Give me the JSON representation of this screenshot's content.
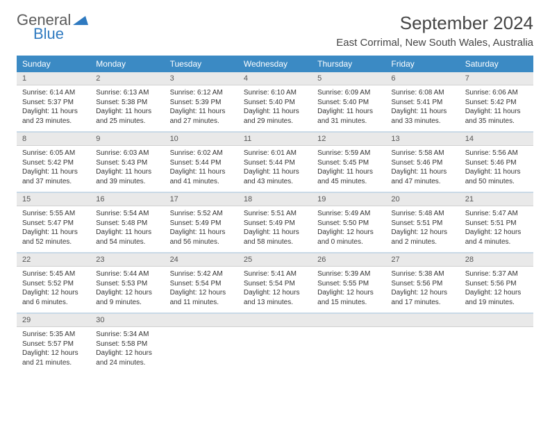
{
  "logo": {
    "word1": "General",
    "word2": "Blue"
  },
  "title": "September 2024",
  "location": "East Corrimal, New South Wales, Australia",
  "colors": {
    "header_bg": "#3b8ac4",
    "header_text": "#ffffff",
    "daynum_bg": "#e9e9e9",
    "sep": "#c9d9e6",
    "logo_gray": "#5a5a5a",
    "logo_blue": "#2f7ac0"
  },
  "weekdays": [
    "Sunday",
    "Monday",
    "Tuesday",
    "Wednesday",
    "Thursday",
    "Friday",
    "Saturday"
  ],
  "weeks": [
    [
      {
        "n": "1",
        "sr": "6:14 AM",
        "ss": "5:37 PM",
        "dh": "11",
        "dm": "23"
      },
      {
        "n": "2",
        "sr": "6:13 AM",
        "ss": "5:38 PM",
        "dh": "11",
        "dm": "25"
      },
      {
        "n": "3",
        "sr": "6:12 AM",
        "ss": "5:39 PM",
        "dh": "11",
        "dm": "27"
      },
      {
        "n": "4",
        "sr": "6:10 AM",
        "ss": "5:40 PM",
        "dh": "11",
        "dm": "29"
      },
      {
        "n": "5",
        "sr": "6:09 AM",
        "ss": "5:40 PM",
        "dh": "11",
        "dm": "31"
      },
      {
        "n": "6",
        "sr": "6:08 AM",
        "ss": "5:41 PM",
        "dh": "11",
        "dm": "33"
      },
      {
        "n": "7",
        "sr": "6:06 AM",
        "ss": "5:42 PM",
        "dh": "11",
        "dm": "35"
      }
    ],
    [
      {
        "n": "8",
        "sr": "6:05 AM",
        "ss": "5:42 PM",
        "dh": "11",
        "dm": "37"
      },
      {
        "n": "9",
        "sr": "6:03 AM",
        "ss": "5:43 PM",
        "dh": "11",
        "dm": "39"
      },
      {
        "n": "10",
        "sr": "6:02 AM",
        "ss": "5:44 PM",
        "dh": "11",
        "dm": "41"
      },
      {
        "n": "11",
        "sr": "6:01 AM",
        "ss": "5:44 PM",
        "dh": "11",
        "dm": "43"
      },
      {
        "n": "12",
        "sr": "5:59 AM",
        "ss": "5:45 PM",
        "dh": "11",
        "dm": "45"
      },
      {
        "n": "13",
        "sr": "5:58 AM",
        "ss": "5:46 PM",
        "dh": "11",
        "dm": "47"
      },
      {
        "n": "14",
        "sr": "5:56 AM",
        "ss": "5:46 PM",
        "dh": "11",
        "dm": "50"
      }
    ],
    [
      {
        "n": "15",
        "sr": "5:55 AM",
        "ss": "5:47 PM",
        "dh": "11",
        "dm": "52"
      },
      {
        "n": "16",
        "sr": "5:54 AM",
        "ss": "5:48 PM",
        "dh": "11",
        "dm": "54"
      },
      {
        "n": "17",
        "sr": "5:52 AM",
        "ss": "5:49 PM",
        "dh": "11",
        "dm": "56"
      },
      {
        "n": "18",
        "sr": "5:51 AM",
        "ss": "5:49 PM",
        "dh": "11",
        "dm": "58"
      },
      {
        "n": "19",
        "sr": "5:49 AM",
        "ss": "5:50 PM",
        "dh": "12",
        "dm": "0"
      },
      {
        "n": "20",
        "sr": "5:48 AM",
        "ss": "5:51 PM",
        "dh": "12",
        "dm": "2"
      },
      {
        "n": "21",
        "sr": "5:47 AM",
        "ss": "5:51 PM",
        "dh": "12",
        "dm": "4"
      }
    ],
    [
      {
        "n": "22",
        "sr": "5:45 AM",
        "ss": "5:52 PM",
        "dh": "12",
        "dm": "6"
      },
      {
        "n": "23",
        "sr": "5:44 AM",
        "ss": "5:53 PM",
        "dh": "12",
        "dm": "9"
      },
      {
        "n": "24",
        "sr": "5:42 AM",
        "ss": "5:54 PM",
        "dh": "12",
        "dm": "11"
      },
      {
        "n": "25",
        "sr": "5:41 AM",
        "ss": "5:54 PM",
        "dh": "12",
        "dm": "13"
      },
      {
        "n": "26",
        "sr": "5:39 AM",
        "ss": "5:55 PM",
        "dh": "12",
        "dm": "15"
      },
      {
        "n": "27",
        "sr": "5:38 AM",
        "ss": "5:56 PM",
        "dh": "12",
        "dm": "17"
      },
      {
        "n": "28",
        "sr": "5:37 AM",
        "ss": "5:56 PM",
        "dh": "12",
        "dm": "19"
      }
    ],
    [
      {
        "n": "29",
        "sr": "5:35 AM",
        "ss": "5:57 PM",
        "dh": "12",
        "dm": "21"
      },
      {
        "n": "30",
        "sr": "5:34 AM",
        "ss": "5:58 PM",
        "dh": "12",
        "dm": "24"
      },
      null,
      null,
      null,
      null,
      null
    ]
  ],
  "labels": {
    "sunrise": "Sunrise:",
    "sunset": "Sunset:",
    "daylight": "Daylight:",
    "hours_and": "hours and",
    "minutes": "minutes."
  }
}
